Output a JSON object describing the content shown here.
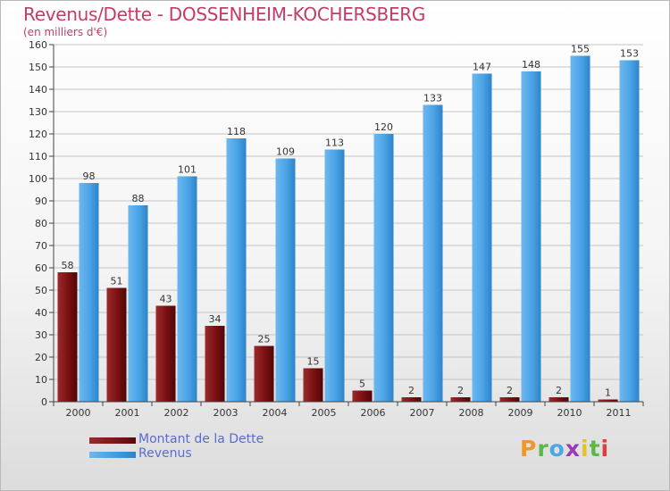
{
  "title": "Revenus/Dette - DOSSENHEIM-KOCHERSBERG",
  "subtitle": "(en milliers d'€)",
  "logo_text": "Proxiti",
  "colors": {
    "dette": "#7a1012",
    "revenus": "#4aa3e6",
    "title": "#c63a6a",
    "legend_text": "#5a6ad8"
  },
  "chart_data": {
    "type": "bar",
    "categories": [
      "2000",
      "2001",
      "2002",
      "2003",
      "2004",
      "2005",
      "2006",
      "2007",
      "2008",
      "2009",
      "2010",
      "2011"
    ],
    "series": [
      {
        "name": "Montant de la Dette",
        "values": [
          58,
          51,
          43,
          34,
          25,
          15,
          5,
          2,
          2,
          2,
          2,
          1
        ]
      },
      {
        "name": "Revenus",
        "values": [
          98,
          88,
          101,
          118,
          109,
          113,
          120,
          133,
          147,
          148,
          155,
          153
        ]
      }
    ],
    "yticks": [
      0,
      10,
      20,
      30,
      40,
      50,
      60,
      70,
      80,
      90,
      100,
      110,
      120,
      130,
      140,
      150,
      160
    ],
    "ylim": [
      0,
      160
    ],
    "grid": true,
    "legend_position": "bottom-left"
  }
}
